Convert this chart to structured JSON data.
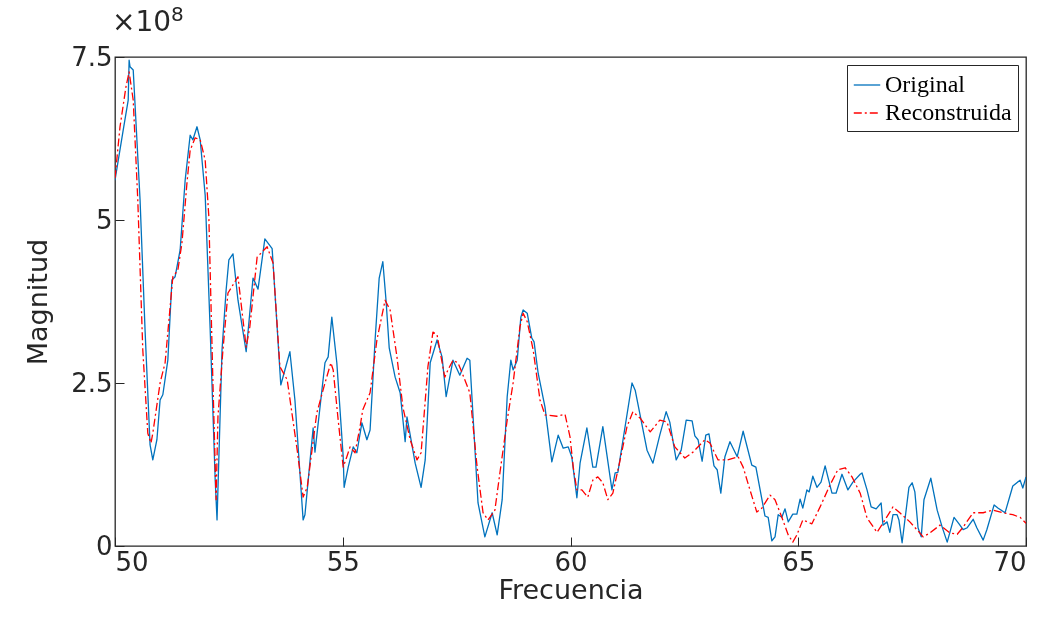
{
  "chart_data": {
    "type": "line",
    "xlabel": "Frecuencia",
    "ylabel": "Magnitud",
    "annotations": [
      "×10$^{8}$"
    ],
    "xlim": [
      50,
      70
    ],
    "xticks": [
      50,
      55,
      60,
      65,
      70
    ],
    "ylim": [
      0,
      7.5
    ],
    "yticks": [
      0,
      2.5,
      5,
      7.5
    ],
    "grid": false,
    "legend": "top right",
    "series": [
      {
        "name": "Original",
        "color": "#0072bd",
        "line_style": "solid",
        "x": [
          50.0,
          50.18,
          50.29,
          50.31,
          50.33,
          50.4,
          50.55,
          50.66,
          50.77,
          50.83,
          50.92,
          50.99,
          51.05,
          51.16,
          51.25,
          51.32,
          51.43,
          51.54,
          51.65,
          51.71,
          51.8,
          51.87,
          51.98,
          52.09,
          52.2,
          52.24,
          52.35,
          52.44,
          52.5,
          52.59,
          52.7,
          52.88,
          53.03,
          53.14,
          53.29,
          53.45,
          53.64,
          53.84,
          53.95,
          54.13,
          54.17,
          54.35,
          54.39,
          54.61,
          54.68,
          54.76,
          54.87,
          55.01,
          55.03,
          55.12,
          55.23,
          55.31,
          55.42,
          55.53,
          55.6,
          55.71,
          55.8,
          55.88,
          55.95,
          56.02,
          56.15,
          56.26,
          56.37,
          56.41,
          56.59,
          56.72,
          56.81,
          56.92,
          57.07,
          57.18,
          57.27,
          57.42,
          57.57,
          57.73,
          57.79,
          57.97,
          58.12,
          58.28,
          58.39,
          58.5,
          58.61,
          58.69,
          58.74,
          58.83,
          58.91,
          58.96,
          59.05,
          59.15,
          59.2,
          59.29,
          59.44,
          59.59,
          59.73,
          59.84,
          59.95,
          60.03,
          60.14,
          60.21,
          60.36,
          60.49,
          60.56,
          60.71,
          60.91,
          60.98,
          61.04,
          61.35,
          61.42,
          61.68,
          61.81,
          61.96,
          62.1,
          62.18,
          62.32,
          62.43,
          62.54,
          62.67,
          62.73,
          62.8,
          62.89,
          62.97,
          63.04,
          63.15,
          63.22,
          63.3,
          63.39,
          63.5,
          63.66,
          63.79,
          63.98,
          64.07,
          64.27,
          64.34,
          64.42,
          64.49,
          64.56,
          64.64,
          64.71,
          64.78,
          64.88,
          64.97,
          65.04,
          65.1,
          65.19,
          65.24,
          65.32,
          65.41,
          65.5,
          65.59,
          65.65,
          65.74,
          65.83,
          65.96,
          66.09,
          66.2,
          66.36,
          66.4,
          66.51,
          66.6,
          66.71,
          66.82,
          66.86,
          66.95,
          67.01,
          67.08,
          67.17,
          67.21,
          67.28,
          67.43,
          67.5,
          67.56,
          67.63,
          67.7,
          67.76,
          67.91,
          68.05,
          68.16,
          68.27,
          68.42,
          68.53,
          68.62,
          68.71,
          68.84,
          68.92,
          69.06,
          69.14,
          69.3,
          69.39,
          69.54,
          69.71,
          69.87,
          69.93,
          70.0
        ],
        "values": [
          5.61,
          6.38,
          6.84,
          7.45,
          7.35,
          7.3,
          5.31,
          3.31,
          1.55,
          1.32,
          1.63,
          2.24,
          2.32,
          2.85,
          4.08,
          4.13,
          4.54,
          5.61,
          6.3,
          6.23,
          6.43,
          6.23,
          5.38,
          3.31,
          1.01,
          0.4,
          3.01,
          3.93,
          4.39,
          4.48,
          3.77,
          2.98,
          4.11,
          3.94,
          4.71,
          4.56,
          2.47,
          2.98,
          2.24,
          0.4,
          0.48,
          1.81,
          1.44,
          2.81,
          2.9,
          3.51,
          2.81,
          1.37,
          0.9,
          1.21,
          1.52,
          1.43,
          1.89,
          1.63,
          1.78,
          3.16,
          4.11,
          4.36,
          3.77,
          3.04,
          2.59,
          2.35,
          1.6,
          1.98,
          1.27,
          0.9,
          1.32,
          2.81,
          3.16,
          2.9,
          2.29,
          2.85,
          2.62,
          2.88,
          2.85,
          0.66,
          0.14,
          0.51,
          0.17,
          0.71,
          2.29,
          2.85,
          2.7,
          2.85,
          3.51,
          3.62,
          3.57,
          3.19,
          3.13,
          2.65,
          2.13,
          1.29,
          1.7,
          1.5,
          1.52,
          1.36,
          0.74,
          1.27,
          1.81,
          1.21,
          1.21,
          1.83,
          0.86,
          1.12,
          1.13,
          2.5,
          2.39,
          1.47,
          1.27,
          1.7,
          2.06,
          1.9,
          1.32,
          1.47,
          1.93,
          1.92,
          1.69,
          1.63,
          1.3,
          1.7,
          1.72,
          1.23,
          1.17,
          0.81,
          1.37,
          1.6,
          1.37,
          1.76,
          1.24,
          1.21,
          0.46,
          0.44,
          0.08,
          0.14,
          0.48,
          0.44,
          0.57,
          0.37,
          0.49,
          0.49,
          0.72,
          0.58,
          0.86,
          0.83,
          1.07,
          0.9,
          0.98,
          1.23,
          1.06,
          0.81,
          0.81,
          1.1,
          0.86,
          0.98,
          1.1,
          1.12,
          0.86,
          0.6,
          0.57,
          0.66,
          0.32,
          0.37,
          0.21,
          0.48,
          0.48,
          0.4,
          0.05,
          0.9,
          0.97,
          0.83,
          0.28,
          0.14,
          0.71,
          1.04,
          0.55,
          0.29,
          0.06,
          0.44,
          0.34,
          0.25,
          0.28,
          0.41,
          0.28,
          0.09,
          0.25,
          0.63,
          0.58,
          0.51,
          0.92,
          1.01,
          0.89,
          1.06
        ]
      },
      {
        "name": "Reconstruida",
        "color": "#ff0000",
        "line_style": "dashdot",
        "x": [
          50.0,
          50.11,
          50.24,
          50.31,
          50.4,
          50.5,
          50.61,
          50.72,
          50.79,
          50.83,
          50.99,
          51.1,
          51.27,
          51.38,
          51.47,
          51.58,
          51.65,
          51.76,
          51.87,
          51.98,
          52.06,
          52.15,
          52.22,
          52.26,
          52.37,
          52.48,
          52.7,
          52.88,
          52.96,
          53.12,
          53.34,
          53.47,
          53.62,
          53.78,
          54.0,
          54.13,
          54.22,
          54.43,
          54.61,
          54.74,
          54.79,
          54.9,
          55.01,
          55.09,
          55.16,
          55.27,
          55.38,
          55.44,
          55.6,
          55.75,
          55.93,
          56.04,
          56.19,
          56.32,
          56.48,
          56.63,
          56.72,
          56.87,
          56.98,
          57.07,
          57.24,
          57.31,
          57.42,
          57.53,
          57.64,
          57.79,
          57.95,
          58.08,
          58.19,
          58.34,
          58.45,
          58.61,
          58.74,
          58.89,
          58.96,
          59.05,
          59.18,
          59.33,
          59.44,
          59.7,
          59.88,
          59.99,
          60.06,
          60.14,
          60.25,
          60.38,
          60.49,
          60.6,
          60.71,
          60.82,
          60.93,
          61.09,
          61.24,
          61.37,
          61.53,
          61.75,
          61.96,
          62.12,
          62.29,
          62.51,
          62.69,
          62.95,
          63.06,
          63.24,
          63.44,
          63.68,
          63.79,
          63.94,
          64.09,
          64.2,
          64.38,
          64.49,
          64.64,
          64.78,
          64.88,
          64.97,
          65.1,
          65.3,
          65.48,
          65.7,
          65.87,
          66.03,
          66.18,
          66.36,
          66.51,
          66.73,
          66.86,
          67.08,
          67.23,
          67.45,
          67.67,
          67.74,
          67.89,
          68.11,
          68.33,
          68.49,
          68.62,
          68.84,
          69.06,
          69.28,
          69.5,
          69.71,
          69.87,
          70.0
        ],
        "values": [
          5.64,
          6.43,
          7.04,
          7.27,
          6.84,
          5.31,
          3.01,
          1.73,
          1.58,
          1.73,
          2.5,
          2.81,
          4.13,
          4.23,
          4.65,
          5.57,
          6.07,
          6.26,
          6.23,
          5.92,
          5.05,
          2.5,
          0.71,
          1.98,
          3.01,
          3.88,
          4.13,
          3.05,
          3.36,
          4.43,
          4.59,
          4.34,
          2.75,
          2.55,
          1.47,
          0.75,
          0.9,
          2.04,
          2.5,
          2.81,
          2.7,
          1.93,
          1.21,
          1.37,
          1.52,
          1.43,
          1.83,
          2.09,
          2.35,
          3.16,
          3.77,
          3.62,
          2.9,
          2.13,
          1.63,
          1.32,
          1.43,
          2.75,
          3.28,
          3.24,
          2.59,
          2.7,
          2.85,
          2.81,
          2.62,
          2.35,
          1.21,
          0.51,
          0.4,
          0.55,
          1.12,
          1.93,
          2.5,
          3.36,
          3.57,
          3.44,
          3.01,
          2.24,
          2.01,
          1.99,
          2.02,
          1.67,
          1.21,
          0.86,
          0.86,
          0.75,
          1.01,
          1.06,
          0.97,
          0.71,
          0.81,
          1.32,
          1.83,
          2.06,
          1.96,
          1.75,
          1.93,
          1.9,
          1.52,
          1.35,
          1.44,
          1.63,
          1.58,
          1.32,
          1.32,
          1.37,
          1.21,
          0.86,
          0.52,
          0.58,
          0.78,
          0.71,
          0.44,
          0.17,
          0.06,
          0.17,
          0.4,
          0.34,
          0.6,
          0.94,
          1.17,
          1.2,
          1.06,
          0.81,
          0.43,
          0.21,
          0.35,
          0.6,
          0.51,
          0.37,
          0.2,
          0.14,
          0.2,
          0.32,
          0.2,
          0.18,
          0.29,
          0.51,
          0.51,
          0.55,
          0.51,
          0.48,
          0.44,
          0.35
        ]
      }
    ]
  }
}
